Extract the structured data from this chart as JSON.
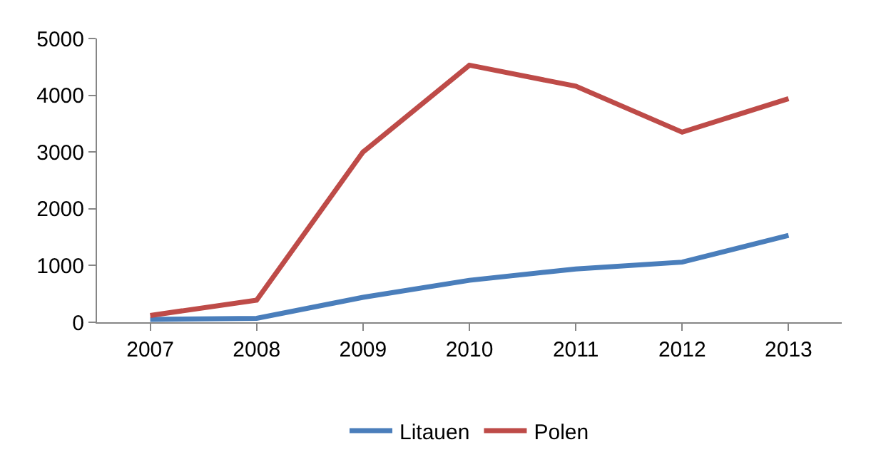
{
  "chart_data": {
    "type": "line",
    "categories": [
      "2007",
      "2008",
      "2009",
      "2010",
      "2011",
      "2012",
      "2013"
    ],
    "series": [
      {
        "name": "Litauen",
        "color": "#4a7ebb",
        "values": [
          50,
          70,
          440,
          740,
          940,
          1060,
          1530
        ]
      },
      {
        "name": "Polen",
        "color": "#be4b48",
        "values": [
          120,
          390,
          3000,
          4530,
          4160,
          3350,
          3940
        ]
      }
    ],
    "ylim": [
      0,
      5000
    ],
    "yticks": [
      0,
      1000,
      2000,
      3000,
      4000,
      5000
    ],
    "grid": false,
    "legend": "bottom",
    "marker": "none",
    "line_style": "solid"
  }
}
